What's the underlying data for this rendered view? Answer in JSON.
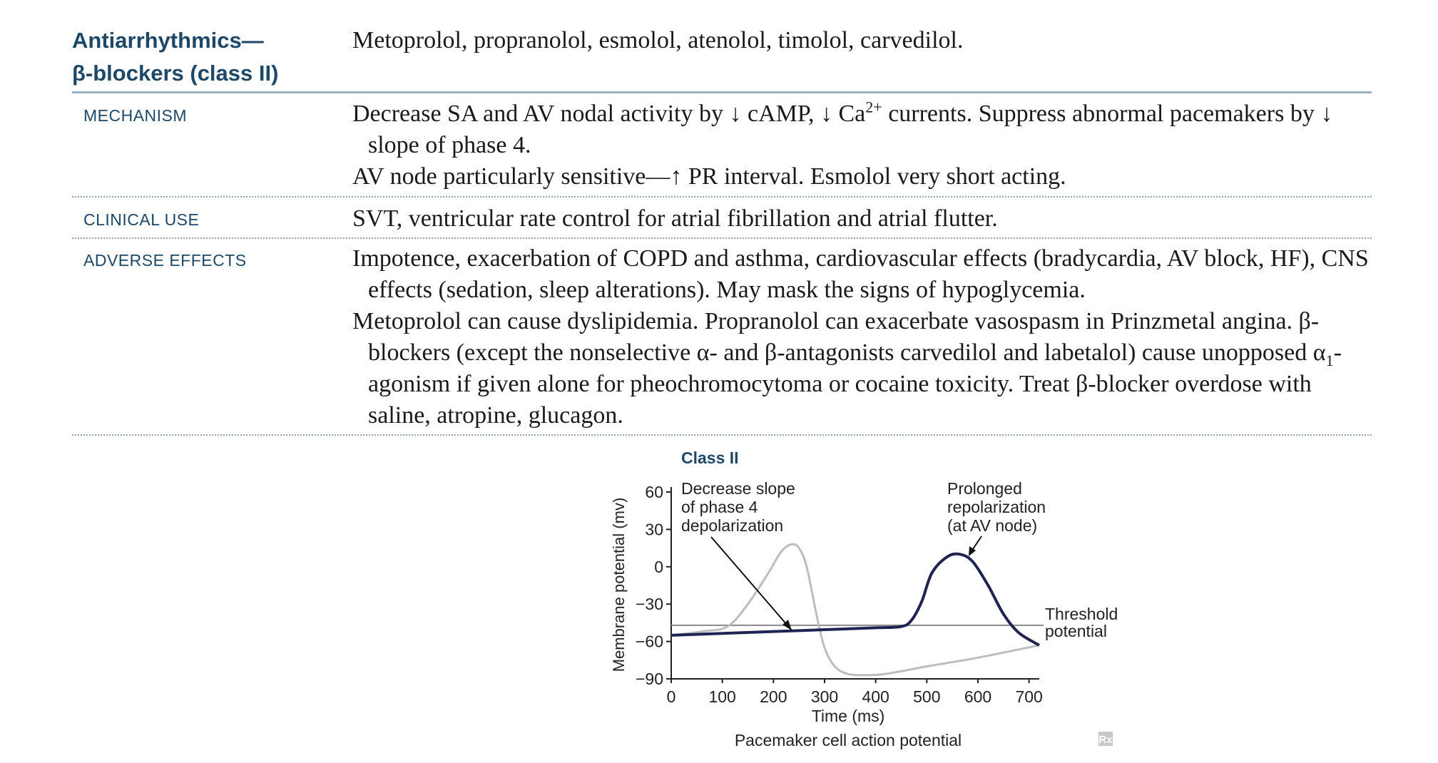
{
  "heading": {
    "line1": "Antiarrhythmics—",
    "line2": "β-blockers (class II)",
    "color": "#1e4868"
  },
  "drugs": "Metoprolol, propranolol, esmolol, atenolol, timolol, carvedilol.",
  "sections": {
    "mechanism": {
      "label": "MECHANISM",
      "p1_a": "Decrease SA and AV nodal activity by ↓ cAMP, ↓ Ca",
      "p1_sup": "2+",
      "p1_b": " currents. Suppress abnormal pacemakers by ↓ slope of phase 4.",
      "p2": "AV node particularly sensitive—↑ PR interval. Esmolol very short acting."
    },
    "clinical_use": {
      "label": "CLINICAL USE",
      "p1": "SVT, ventricular rate control for atrial fibrillation and atrial flutter."
    },
    "adverse_effects": {
      "label": "ADVERSE EFFECTS",
      "p1": "Impotence, exacerbation of COPD and asthma, cardiovascular effects (bradycardia, AV block, HF), CNS effects (sedation, sleep alterations). May mask the signs of hypoglycemia.",
      "p2_a": "Metoprolol can cause dyslipidemia. Propranolol can exacerbate vasospasm in Prinzmetal angina. β-blockers (except the nonselective α- and β-antagonists carvedilol and labetalol) cause unopposed α",
      "p2_sub": "1",
      "p2_b": "-agonism if given alone for pheochromocytoma or cocaine toxicity. Treat β-blocker overdose with saline, atropine, glucagon."
    }
  },
  "figure": {
    "title": "Class II",
    "ylabel": "Membrane potential (mv)",
    "xlabel": "Time (ms)",
    "caption": "Pacemaker cell action potential",
    "rx_mark": "Rx",
    "annotations": {
      "phase4_l1": "Decrease slope",
      "phase4_l2": "of phase 4",
      "phase4_l3": "depolarization",
      "repol_l1": "Prolonged",
      "repol_l2": "repolarization",
      "repol_l3": "(at AV node)",
      "threshold_l1": "Threshold",
      "threshold_l2": "potential"
    },
    "colors": {
      "normal": "#bdbdbd",
      "class2": "#1f2452",
      "threshold": "#8a8a8a",
      "title": "#1e4868"
    }
  },
  "chart_data": {
    "type": "line",
    "title": "Class II",
    "xlabel": "Time (ms)",
    "ylabel": "Membrane potential (mv)",
    "xlim": [
      0,
      720
    ],
    "ylim": [
      -90,
      65
    ],
    "x_ticks": [
      "0",
      "100",
      "200",
      "300",
      "400",
      "500",
      "600",
      "700"
    ],
    "y_ticks": [
      "60",
      "30",
      "0",
      "−30",
      "−60",
      "−90"
    ],
    "threshold": -47,
    "series": [
      {
        "x": [
          0,
          60,
          110,
          150,
          190,
          215,
          235,
          250,
          265,
          285,
          300,
          320,
          345,
          380,
          420,
          500,
          600,
          720
        ],
        "y": [
          -55,
          -52,
          -48,
          -30,
          -5,
          12,
          18,
          15,
          0,
          -40,
          -65,
          -80,
          -86,
          -87,
          -86,
          -80,
          -73,
          -63
        ]
      },
      {
        "x": [
          0,
          100,
          200,
          300,
          400,
          450,
          470,
          490,
          510,
          540,
          565,
          590,
          620,
          650,
          680,
          720
        ],
        "y": [
          -55,
          -53.5,
          -52,
          -50.5,
          -49,
          -48,
          -43,
          -28,
          -5,
          8,
          10,
          4,
          -15,
          -38,
          -53,
          -63
        ]
      }
    ]
  }
}
